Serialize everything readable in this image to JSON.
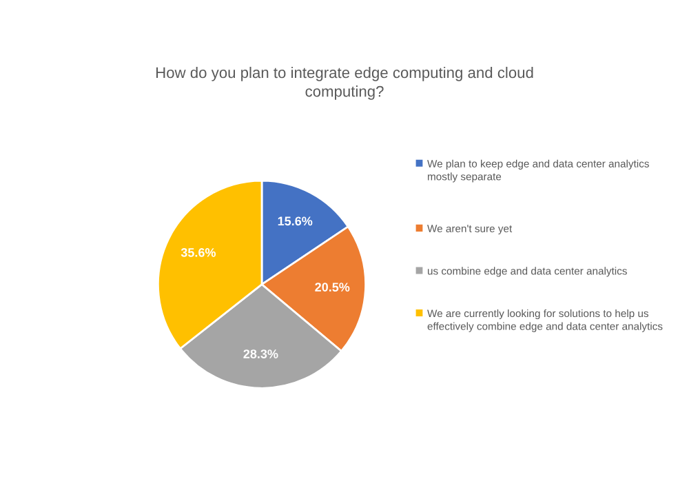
{
  "chart_data": {
    "type": "pie",
    "title": "How do you plan to integrate edge computing and cloud\ncomputing?",
    "categories": [
      "We plan to keep edge and data center analytics mostly separate",
      "We aren't sure yet",
      "us combine edge and data center analytics",
      "We are currently looking for solutions to help us effectively combine edge and data center analytics"
    ],
    "values": [
      15.6,
      20.5,
      28.3,
      35.6
    ],
    "colors": [
      "#4472c4",
      "#ed7d31",
      "#a5a5a5",
      "#ffc000"
    ],
    "value_labels": [
      "15.6%",
      "20.5%",
      "28.3%",
      "35.6%"
    ],
    "legend": "right"
  }
}
